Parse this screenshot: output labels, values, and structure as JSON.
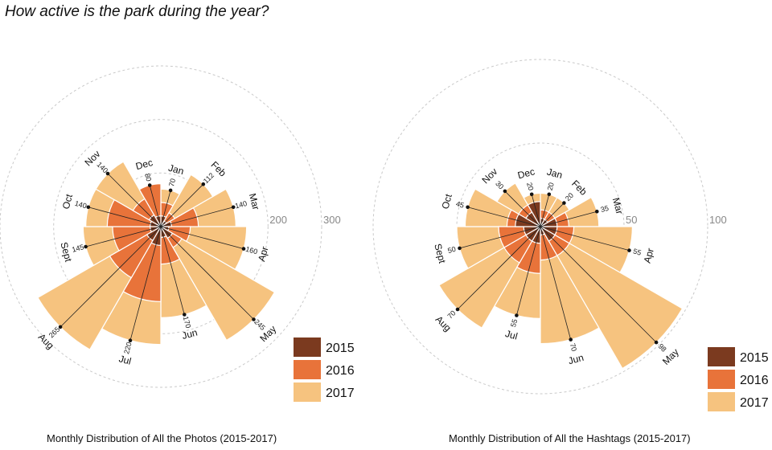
{
  "page_title": "How active is the park during the year?",
  "colors": {
    "y2015": "#7b3a1f",
    "y2016": "#e8733a",
    "y2017": "#f6c37f",
    "ring": "#c9c9c9"
  },
  "chart_data": [
    {
      "type": "polar-bar",
      "title": "Monthly Distribution of All the Photos (2015-2017)",
      "r_max": 300,
      "ring_ticks": [
        "100",
        "200",
        "300"
      ],
      "categories": [
        "Jan",
        "Feb",
        "Mar",
        "Apr",
        "May",
        "Jun",
        "Jul",
        "Aug",
        "Sept",
        "Oct",
        "Nov",
        "Dec"
      ],
      "series": [
        {
          "name": "2015",
          "values": [
            20,
            12,
            20,
            15,
            25,
            20,
            35,
            30,
            20,
            20,
            25,
            20
          ]
        },
        {
          "name": "2016",
          "values": [
            45,
            30,
            70,
            55,
            45,
            70,
            140,
            110,
            90,
            100,
            60,
            80
          ]
        },
        {
          "name": "2017",
          "values": [
            70,
            112,
            140,
            160,
            245,
            170,
            220,
            265,
            145,
            140,
            140,
            80
          ]
        }
      ],
      "labels": [
        "70",
        "112",
        "140",
        "160",
        "245",
        "170",
        "220",
        "265",
        "145",
        "140",
        "140",
        "80"
      ],
      "legend": [
        "2015",
        "2016",
        "2017"
      ],
      "legend_position": "bottom-right"
    },
    {
      "type": "polar-bar",
      "title": "Monthly Distribution of All the Hashtags (2015-2017)",
      "r_max": 100,
      "ring_ticks": [
        "50",
        "100"
      ],
      "categories": [
        "Jan",
        "Feb",
        "Mar",
        "Apr",
        "May",
        "Jun",
        "Jul",
        "Aug",
        "Sept",
        "Oct",
        "Nov",
        "Dec"
      ],
      "series": [
        {
          "name": "2015",
          "values": [
            5,
            5,
            10,
            10,
            10,
            5,
            10,
            10,
            10,
            15,
            10,
            15
          ]
        },
        {
          "name": "2016",
          "values": [
            10,
            10,
            17,
            20,
            20,
            20,
            28,
            25,
            25,
            20,
            15,
            15
          ]
        },
        {
          "name": "2017",
          "values": [
            20,
            20,
            35,
            55,
            98,
            70,
            55,
            70,
            50,
            45,
            30,
            20
          ]
        }
      ],
      "labels": [
        "20",
        "20",
        "35",
        "55",
        "98",
        "70",
        "55",
        "70",
        "50",
        "45",
        "30",
        "20"
      ],
      "legend": [
        "2015",
        "2016",
        "2017"
      ],
      "legend_position": "bottom-right"
    }
  ]
}
